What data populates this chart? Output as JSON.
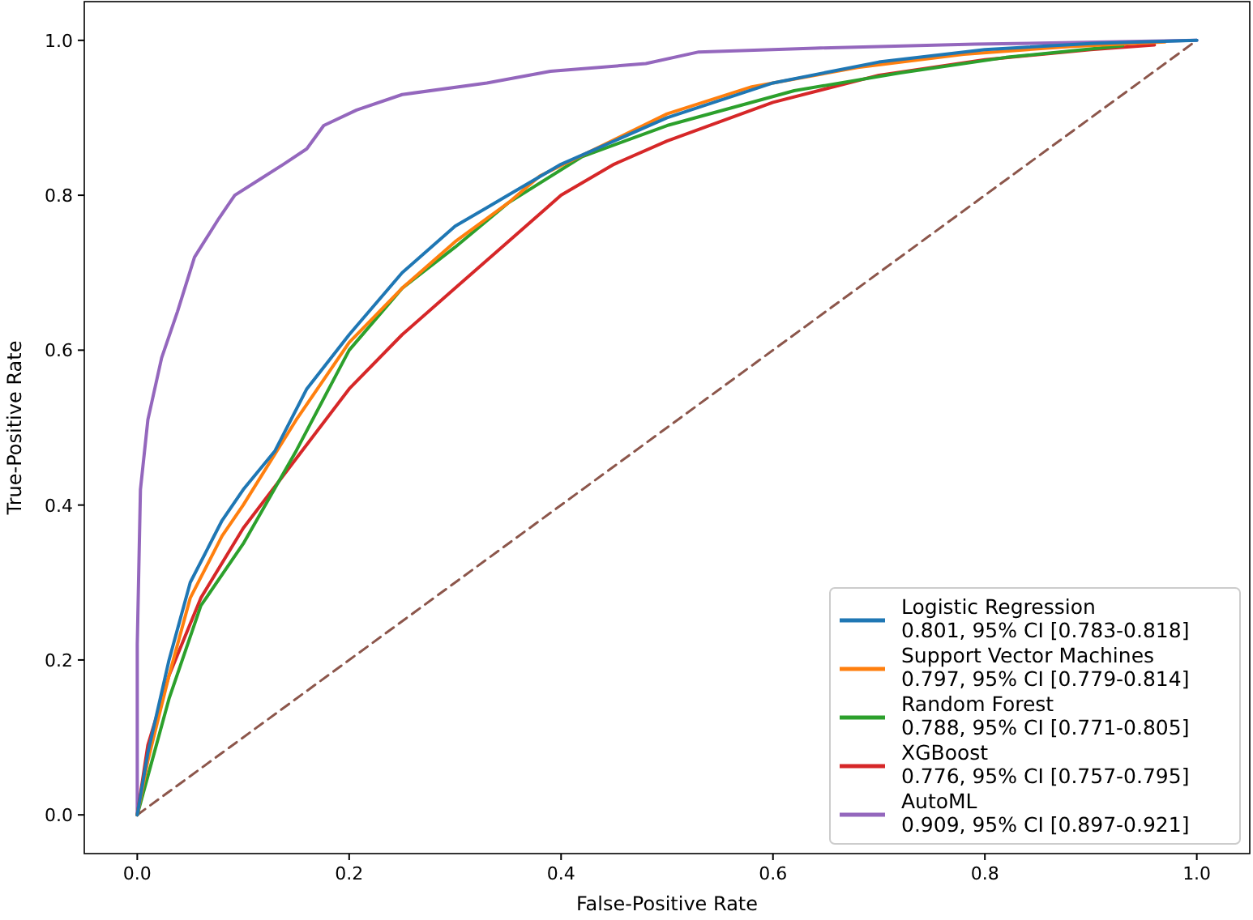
{
  "chart_data": {
    "type": "line",
    "xlabel": "False-Positive Rate",
    "ylabel": "True-Positive Rate",
    "xlim": [
      -0.05,
      1.05
    ],
    "ylim": [
      -0.05,
      1.05
    ],
    "xticks": [
      {
        "value": 0,
        "label": "0.0"
      },
      {
        "value": 0.2,
        "label": "0.2"
      },
      {
        "value": 0.4,
        "label": "0.4"
      },
      {
        "value": 0.6,
        "label": "0.6"
      },
      {
        "value": 0.8,
        "label": "0.8"
      },
      {
        "value": 1,
        "label": "1.0"
      }
    ],
    "yticks": [
      {
        "value": 0,
        "label": "0.0"
      },
      {
        "value": 0.2,
        "label": "0.2"
      },
      {
        "value": 0.4,
        "label": "0.4"
      },
      {
        "value": 0.6,
        "label": "0.6"
      },
      {
        "value": 0.8,
        "label": "0.8"
      },
      {
        "value": 1,
        "label": "1.0"
      }
    ],
    "grid": false,
    "legend": "bottom right",
    "marker": "none",
    "series": [
      {
        "name": "Logistic Regression\n0.801, 95% CI [0.783-0.818]",
        "color": "#1f77b4",
        "x": [
          0,
          0.01,
          0.03,
          0.05,
          0.08,
          0.1,
          0.13,
          0.16,
          0.2,
          0.25,
          0.3,
          0.35,
          0.4,
          0.5,
          0.6,
          0.7,
          0.8,
          0.9,
          1
        ],
        "values": [
          0,
          0.08,
          0.2,
          0.3,
          0.38,
          0.42,
          0.47,
          0.55,
          0.62,
          0.7,
          0.76,
          0.8,
          0.84,
          0.9,
          0.945,
          0.972,
          0.988,
          0.996,
          1
        ]
      },
      {
        "name": "Support Vector Machines\n0.797, 95% CI [0.779-0.814]",
        "color": "#ff7f0e",
        "x": [
          0,
          0.01,
          0.03,
          0.05,
          0.08,
          0.1,
          0.15,
          0.2,
          0.25,
          0.3,
          0.35,
          0.38,
          0.5,
          0.58,
          0.68,
          0.78,
          0.88,
          0.97
        ],
        "values": [
          0,
          0.07,
          0.18,
          0.28,
          0.36,
          0.4,
          0.51,
          0.61,
          0.68,
          0.74,
          0.79,
          0.825,
          0.905,
          0.94,
          0.965,
          0.982,
          0.992,
          0.998
        ]
      },
      {
        "name": "Random Forest\n0.788, 95% CI [0.771-0.805]",
        "color": "#2ca02c",
        "x": [
          0,
          0.01,
          0.03,
          0.06,
          0.1,
          0.15,
          0.2,
          0.25,
          0.3,
          0.35,
          0.42,
          0.5,
          0.62,
          0.72,
          0.82,
          0.93
        ],
        "values": [
          0,
          0.05,
          0.15,
          0.27,
          0.35,
          0.47,
          0.6,
          0.68,
          0.733,
          0.79,
          0.85,
          0.89,
          0.935,
          0.958,
          0.978,
          0.993
        ]
      },
      {
        "name": "XGBoost\n0.776, 95% CI [0.757-0.795]",
        "color": "#d62728",
        "x": [
          0,
          0.01,
          0.03,
          0.06,
          0.1,
          0.15,
          0.2,
          0.25,
          0.3,
          0.35,
          0.4,
          0.45,
          0.5,
          0.6,
          0.7,
          0.8,
          0.9,
          0.96
        ],
        "values": [
          0,
          0.09,
          0.18,
          0.28,
          0.37,
          0.46,
          0.55,
          0.62,
          0.68,
          0.74,
          0.8,
          0.84,
          0.87,
          0.92,
          0.955,
          0.975,
          0.988,
          0.994
        ]
      },
      {
        "name": "AutoML\n0.909, 95% CI [0.897-0.921]",
        "color": "#9467bd",
        "x": [
          0,
          0,
          0.003,
          0.01,
          0.023,
          0.038,
          0.054,
          0.077,
          0.092,
          0.115,
          0.138,
          0.16,
          0.176,
          0.207,
          0.25,
          0.33,
          0.39,
          0.48,
          0.53,
          0.64,
          0.79,
          1
        ],
        "values": [
          0,
          0.22,
          0.42,
          0.51,
          0.59,
          0.65,
          0.72,
          0.77,
          0.8,
          0.82,
          0.84,
          0.86,
          0.89,
          0.91,
          0.93,
          0.945,
          0.96,
          0.97,
          0.985,
          0.99,
          0.995,
          1
        ]
      },
      {
        "color": "#8c564b",
        "line_style": "dashed",
        "x": [
          0,
          1
        ],
        "values": [
          0,
          1
        ]
      }
    ]
  }
}
